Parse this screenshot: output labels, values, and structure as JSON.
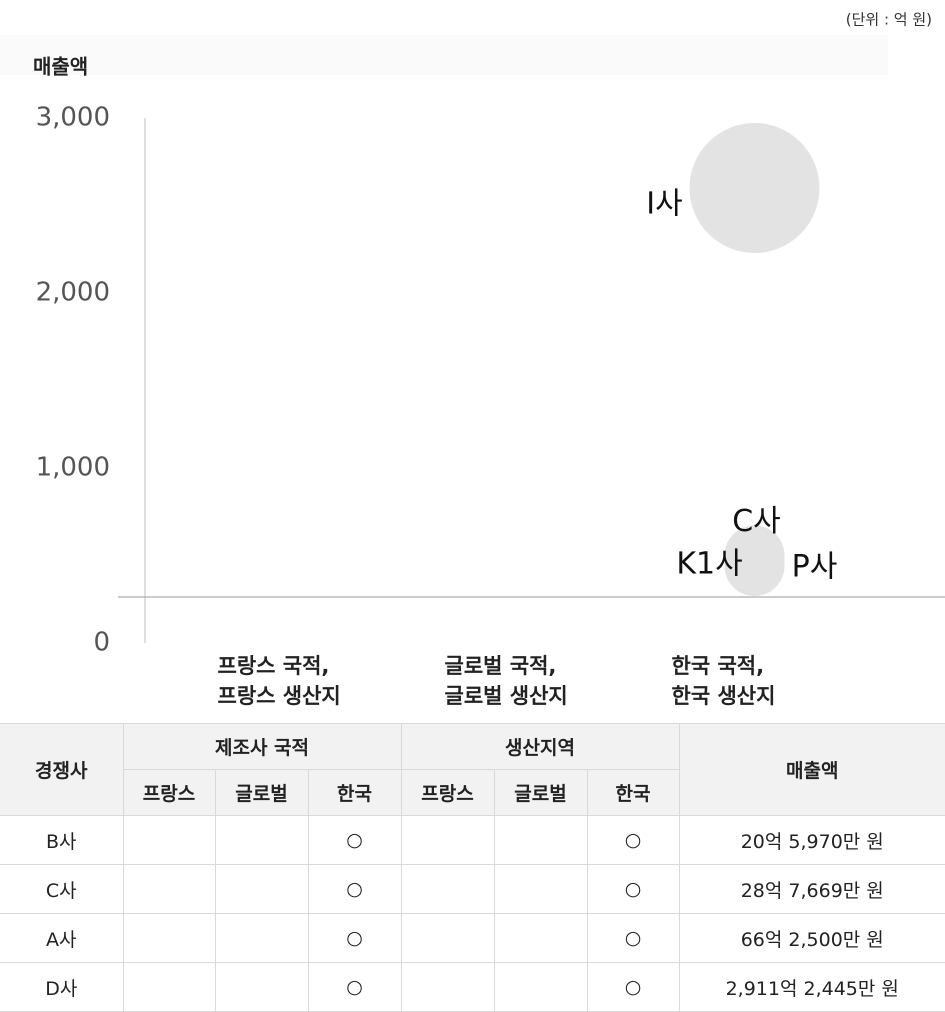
{
  "chart_data": {
    "type": "scatter",
    "unit_note": "(단위 : 억 원)",
    "ylabel": "매출액",
    "categories": [
      [
        "프랑스 국적,",
        "프랑스 생산지"
      ],
      [
        "글로벌 국적,",
        "글로벌 생산지"
      ],
      [
        "한국 국적,",
        "한국 생산지"
      ]
    ],
    "ylim": [
      0,
      3000
    ],
    "yticks": [
      0,
      {
        "value": 1000,
        "label": "1,000"
      },
      {
        "value": 2000,
        "label": "2,000"
      },
      {
        "value": 3000,
        "label": "3,000"
      }
    ],
    "color": "#e3e3e3",
    "points": [
      {
        "name": "I사",
        "category": 2,
        "value": 2600
      },
      {
        "name": "C사",
        "category": 2,
        "value": 500
      },
      {
        "name": "K1사",
        "category": 2,
        "value": 470
      },
      {
        "name": "P사",
        "category": 2,
        "value": 440
      }
    ]
  },
  "table": {
    "header": {
      "company": "경쟁사",
      "group1": "제조사 국적",
      "group2": "생산지역",
      "sales": "매출액",
      "sub1": [
        "프랑스",
        "글로벌",
        "한국"
      ],
      "sub2": [
        "프랑스",
        "글로벌",
        "한국"
      ]
    },
    "rows": [
      {
        "company": "B사",
        "nationality": "한국",
        "production": "한국",
        "symbol": "○",
        "sales": "20억 5,970만 원"
      },
      {
        "company": "C사",
        "nationality": "한국",
        "production": "한국",
        "symbol": "○",
        "sales": "28억 7,669만 원"
      },
      {
        "company": "A사",
        "nationality": "한국",
        "production": "한국",
        "symbol": "○",
        "sales": "66억 2,500만 원"
      },
      {
        "company": "D사",
        "nationality": "한국",
        "production": "한국",
        "symbol": "○",
        "sales": "2,911억 2,445만 원"
      }
    ]
  }
}
